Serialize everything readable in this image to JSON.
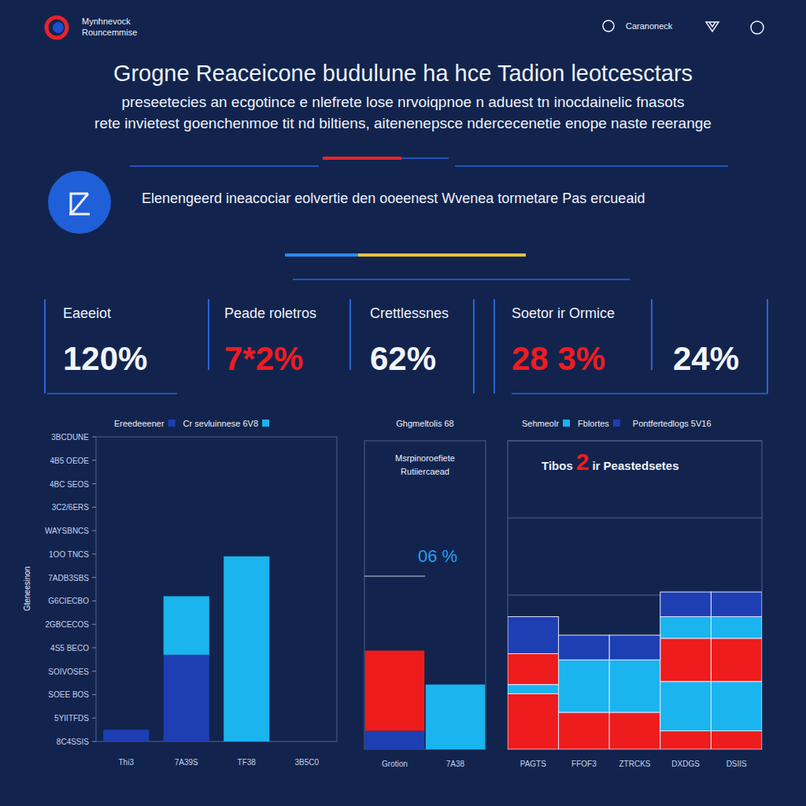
{
  "header": {
    "logo": [
      "Mynhnevock",
      "Rouncemmise"
    ],
    "nav": "Caranoneck",
    "title": "Grogne Reaceicone budulune ha hce Tadion leotcesctars",
    "subtitle": [
      "preseetecies an ecgotince e nlefrete lose nrvoiqpnoe n aduest tn inocdainelic fnasots",
      "rete invietest goenchenmoe tit nd biltiens, aitenenepsce ndercecenetie enope naste reerange"
    ],
    "banner": "Elenengeerd ineacociar eolvertie den ooeenest Wvenea tormetare Pas ercueaid"
  },
  "kpis": [
    {
      "label": "Eaeeiot",
      "value": "120%",
      "color": "#f2f5fc"
    },
    {
      "label": "Peade roletros",
      "value": "7*2%",
      "color": "#ee1c22"
    },
    {
      "label": "Crettlessnes",
      "value": "62%",
      "color": "#f2f5fc"
    },
    {
      "label": "Soetor ir Ormice",
      "value": "28 3%",
      "color": "#ee1c22"
    },
    {
      "value": "24%",
      "color": "#f2f5fc"
    }
  ],
  "chart_data": [
    {
      "type": "bar",
      "stacked": true,
      "legend": "top",
      "y_label": "Gteneesinon",
      "categories": [
        "Thi3",
        "7A39S",
        "TF38",
        "3B5C0"
      ],
      "series": [
        {
          "name": "Ereedeeener",
          "color": "#1d3fb3",
          "values": [
            0.5,
            3.7,
            0,
            0
          ]
        },
        {
          "name": "Cr sevluinnese 6V8",
          "color": "#1ab4ee",
          "values": [
            0,
            2.5,
            7.9,
            0
          ]
        }
      ],
      "ylim": [
        0,
        13
      ],
      "yticks": [
        {
          "value": 0,
          "label": "8C4SSIS"
        },
        {
          "value": 1,
          "label": "5YIITFDS"
        },
        {
          "value": 2,
          "label": "SOEE BOS"
        },
        {
          "value": 3,
          "label": "SOIVOSES"
        },
        {
          "value": 4,
          "label": "4S5 BECO"
        },
        {
          "value": 5,
          "label": "2GBCECOS"
        },
        {
          "value": 6,
          "label": "G6CIECBO"
        },
        {
          "value": 7,
          "label": "7ADB3SBS"
        },
        {
          "value": 8,
          "label": "1OO TNCS"
        },
        {
          "value": 9,
          "label": "WAYSBNCS"
        },
        {
          "value": 10,
          "label": "3C2/6ERS"
        },
        {
          "value": 11,
          "label": "4BC SEOS"
        },
        {
          "value": 12,
          "label": "4B5 OEOE"
        },
        {
          "value": 13,
          "label": "3BCDUNE"
        }
      ],
      "grid": false
    },
    {
      "type": "bar",
      "stacked": true,
      "title": "Ghgmeltolis 68",
      "subtitle": [
        "Msrpinoroefiete",
        "Rutiiercaead"
      ],
      "annotation": "06 %",
      "categories": [
        "Grotion",
        "7A38"
      ],
      "series": [
        {
          "color": "#1d3fb3",
          "values": [
            0.6,
            0
          ]
        },
        {
          "color": "#ee1c1c",
          "values": [
            2.6,
            0
          ]
        },
        {
          "color": "#1ab4ee",
          "values": [
            0,
            2.1
          ]
        }
      ],
      "ylim": [
        0,
        10
      ],
      "tick_labels": "x"
    },
    {
      "type": "bar",
      "stacked": true,
      "legend": "top",
      "title": [
        "Tibos",
        "2",
        "ir Peastedsetes"
      ],
      "note": "Pontfertedlogs 5V16",
      "categories": [
        "PAGTS",
        "FFOF3",
        "ZTRCKS",
        "DXDGS",
        "DSIIS"
      ],
      "series": [
        {
          "color": "#ee1c1c",
          "values": [
            1.8,
            1.2,
            1.2,
            0.6,
            0.6
          ]
        },
        {
          "name": "Sehmeolr",
          "color": "#1ab4ee",
          "values": [
            0.3,
            1.7,
            1.7,
            1.6,
            1.6
          ]
        },
        {
          "color": "#ee1c1c",
          "values": [
            1.0,
            0,
            0,
            1.4,
            1.4
          ]
        },
        {
          "color": "#1ab4ee",
          "values": [
            0,
            0,
            0,
            0.7,
            0.7
          ]
        },
        {
          "name": "Fblortes",
          "color": "#1d3fb3",
          "values": [
            1.2,
            0.8,
            0.8,
            0.8,
            0.8
          ]
        }
      ],
      "ylim": [
        0,
        10
      ],
      "yticks": [
        0,
        2.5,
        5,
        7.5,
        10
      ],
      "grid": true,
      "tick_labels": "x"
    }
  ]
}
